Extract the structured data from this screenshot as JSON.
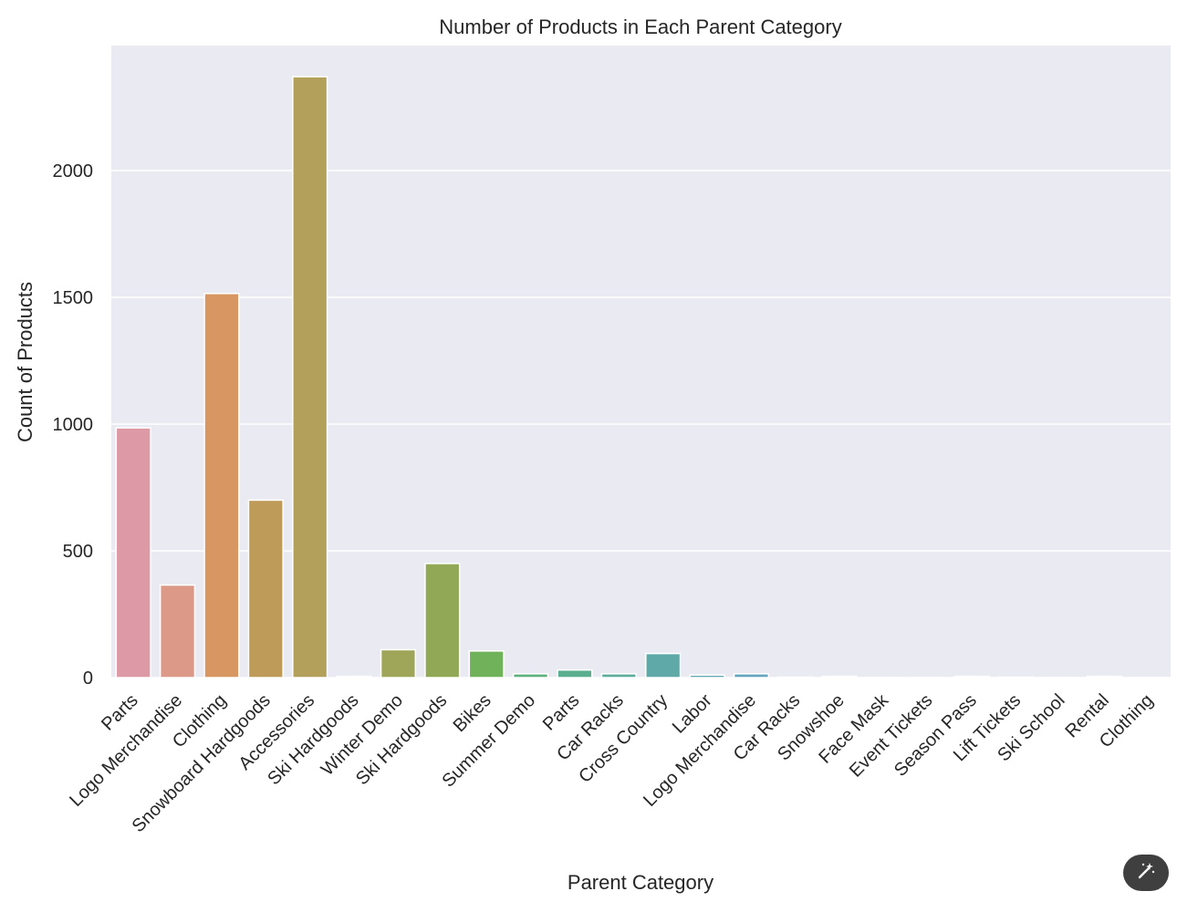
{
  "chart_data": {
    "type": "bar",
    "title": "Number of Products in Each Parent Category",
    "xlabel": "Parent Category",
    "ylabel": "Count of Products",
    "ylim": [
      0,
      2400
    ],
    "yticks": [
      0,
      500,
      1000,
      1500,
      2000
    ],
    "grid": true,
    "legend": "none",
    "categories": [
      "Parts",
      "Logo Merchandise",
      "Clothing",
      "Snowboard Hardgoods",
      "Accessories",
      "Ski Hardgoods",
      "Winter Demo",
      "Ski Hardgoods",
      "Bikes",
      "Summer Demo",
      "Parts",
      "Car Racks",
      "Cross Country",
      "Labor",
      "Logo Merchandise",
      "Car Racks",
      "Snowshoe",
      "Face Mask",
      "Event Tickets",
      "Season Pass",
      "Lift Tickets",
      "Ski School",
      "Rental",
      "Clothing"
    ],
    "values": [
      985,
      365,
      1515,
      700,
      2370,
      5,
      110,
      450,
      105,
      15,
      30,
      15,
      95,
      10,
      15,
      2,
      5,
      1,
      1,
      5,
      2,
      1,
      5,
      1
    ],
    "colors": [
      "#dd99a5",
      "#dd9987",
      "#d79662",
      "#be9b59",
      "#b3a05a",
      "#a9a45a",
      "#9fa65a",
      "#91a956",
      "#6fb25a",
      "#5eb07c",
      "#5cae90",
      "#5dac9c",
      "#5fa9a8",
      "#61a7b3",
      "#64a5bd",
      "#699fc6",
      "#7c9bd0",
      "#9498d6",
      "#aa90d6",
      "#bf8dd4",
      "#d08cd0",
      "#db8dc6",
      "#df90b6",
      "#dd93a8"
    ]
  },
  "ui": {
    "magic_icon": "magic-wand-icon"
  }
}
